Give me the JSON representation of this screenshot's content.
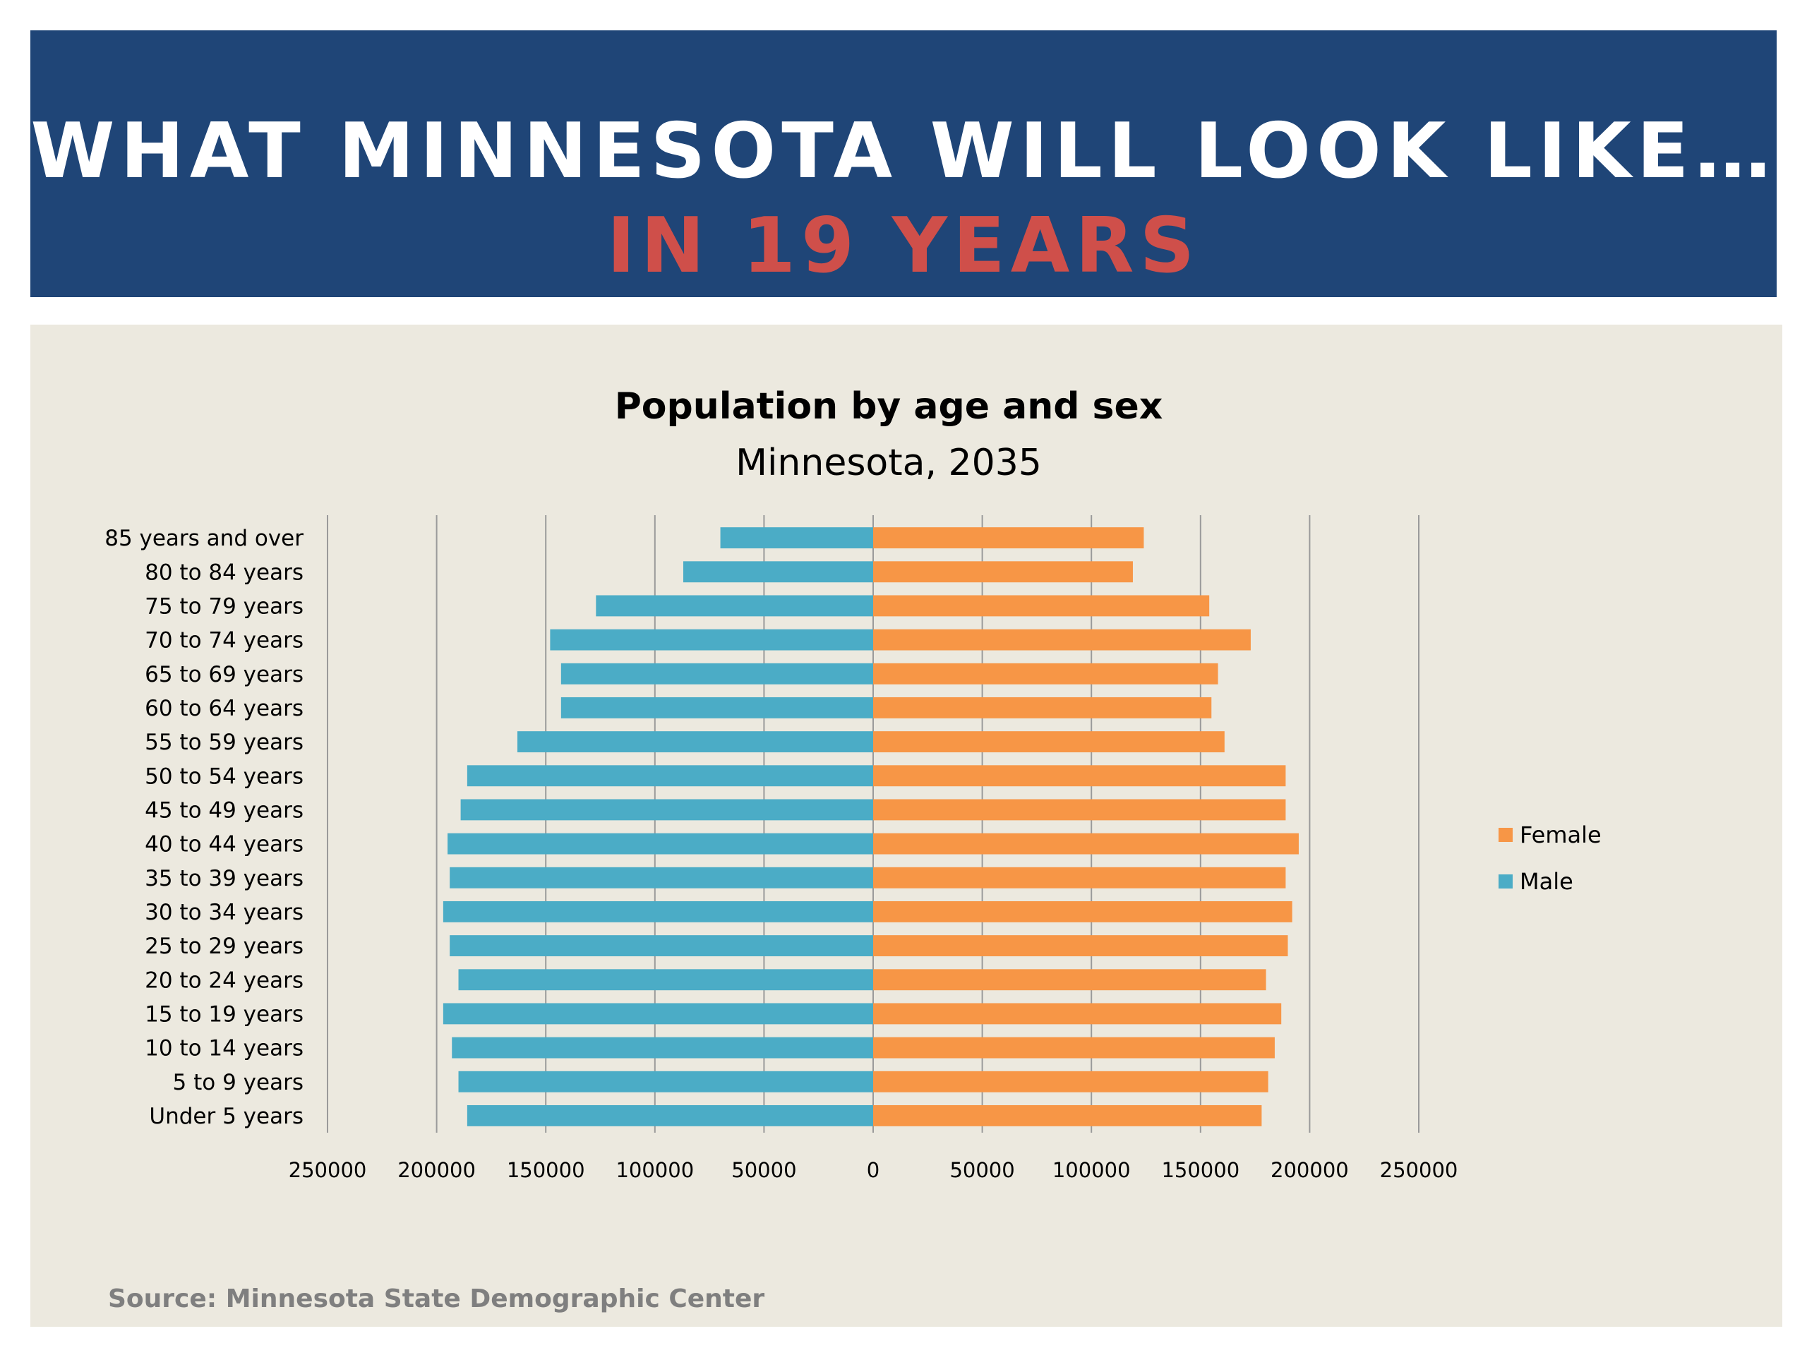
{
  "banner": {
    "line1": "WHAT MINNESOTA WILL LOOK LIKE…",
    "line2": "IN 19 YEARS"
  },
  "source": "Source: Minnesota State Demographic Center",
  "chart_data": {
    "type": "bar",
    "orientation": "horizontal",
    "layout": "population-pyramid",
    "title": "Population by age and sex",
    "subtitle": "Minnesota, 2035",
    "categories": [
      "85 years and over",
      "80 to 84 years",
      "75 to 79 years",
      "70 to 74 years",
      "65 to 69 years",
      "60 to 64 years",
      "55 to 59 years",
      "50 to 54 years",
      "45 to 49 years",
      "40 to 44 years",
      "35 to 39 years",
      "30 to 34 years",
      "25 to 29 years",
      "20 to 24 years",
      "15 to 19 years",
      "10 to 14 years",
      "5 to 9 years",
      "Under 5 years"
    ],
    "series": [
      {
        "name": "Female",
        "color": "#f79646",
        "side": "right",
        "values": [
          124000,
          119000,
          154000,
          173000,
          158000,
          155000,
          161000,
          189000,
          189000,
          195000,
          189000,
          192000,
          190000,
          180000,
          187000,
          184000,
          181000,
          178000
        ]
      },
      {
        "name": "Male",
        "color": "#4bacc6",
        "side": "left",
        "values": [
          70000,
          87000,
          127000,
          148000,
          143000,
          143000,
          163000,
          186000,
          189000,
          195000,
          194000,
          197000,
          194000,
          190000,
          197000,
          193000,
          190000,
          186000
        ]
      }
    ],
    "xlim": [
      -250000,
      250000
    ],
    "x_tick_values": [
      -250000,
      -200000,
      -150000,
      -100000,
      -50000,
      0,
      50000,
      100000,
      150000,
      200000,
      250000
    ],
    "x_tick_labels": [
      "250000",
      "200000",
      "150000",
      "100000",
      "50000",
      "0",
      "50000",
      "100000",
      "150000",
      "200000",
      "250000"
    ],
    "grid": true,
    "legend_position": "right"
  }
}
